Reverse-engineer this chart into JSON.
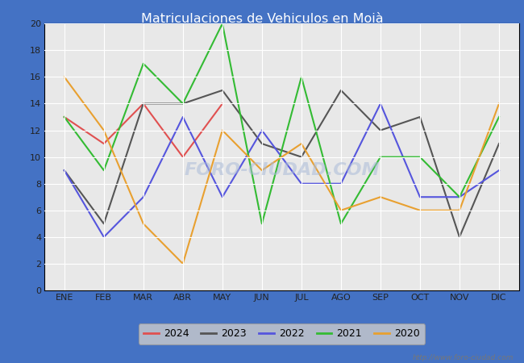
{
  "title": "Matriculaciones de Vehiculos en Moià",
  "months": [
    "ENE",
    "FEB",
    "MAR",
    "ABR",
    "MAY",
    "JUN",
    "JUL",
    "AGO",
    "SEP",
    "OCT",
    "NOV",
    "DIC"
  ],
  "series": {
    "2024": [
      13,
      11,
      14,
      10,
      14,
      null,
      null,
      null,
      null,
      null,
      null,
      null
    ],
    "2023": [
      9,
      5,
      14,
      14,
      15,
      11,
      10,
      15,
      12,
      13,
      4,
      11
    ],
    "2022": [
      9,
      4,
      7,
      13,
      7,
      12,
      8,
      8,
      14,
      7,
      7,
      9
    ],
    "2021": [
      13,
      9,
      17,
      14,
      20,
      5,
      16,
      5,
      10,
      10,
      7,
      13
    ],
    "2020": [
      16,
      12,
      5,
      2,
      12,
      9,
      11,
      6,
      7,
      6,
      6,
      14
    ]
  },
  "colors": {
    "2024": "#e05050",
    "2023": "#555555",
    "2022": "#5555dd",
    "2021": "#33bb33",
    "2020": "#e8a030"
  },
  "ylim": [
    0,
    20
  ],
  "yticks": [
    0,
    2,
    4,
    6,
    8,
    10,
    12,
    14,
    16,
    18,
    20
  ],
  "header_bg": "#4472c4",
  "title_color": "#ffffff",
  "plot_bg": "#e8e8e8",
  "grid_color": "#ffffff",
  "watermark": "FORO-CIUDAD.COM",
  "url": "http://www.foro-ciudad.com",
  "legend_bg": "#cccccc",
  "legend_edge": "#999999"
}
